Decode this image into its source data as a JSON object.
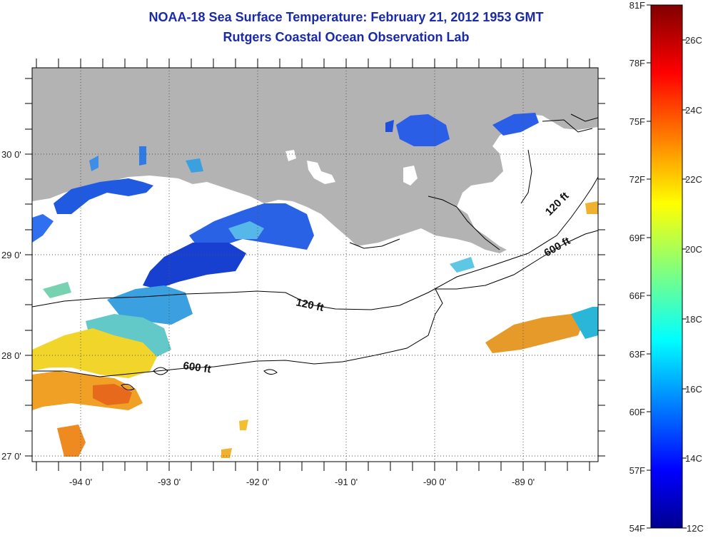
{
  "title_line1": "NOAA-18 Sea Surface Temperature:  February 21, 2012 1953 GMT",
  "title_line2": "Rutgers Coastal Ocean Observation Lab",
  "map": {
    "lon_labels": [
      "-94 0'",
      "-93 0'",
      "-92 0'",
      "-91 0'",
      "-90 0'",
      "-89 0'"
    ],
    "lat_labels": [
      "30 0'",
      "29 0'",
      "28 0'",
      "27 0'"
    ],
    "contour_labels": {
      "c120_a": "120 ft",
      "c120_b": "120 ft",
      "c600_a": "600 ft",
      "c600_b": "600 ft"
    },
    "colors": {
      "land": "#b3b3b3",
      "no_data": "#ffffff",
      "contour": "#000000"
    }
  },
  "colorbar": {
    "fahrenheit_labels": [
      "81F",
      "78F",
      "75F",
      "72F",
      "69F",
      "66F",
      "63F",
      "60F",
      "57F",
      "54F"
    ],
    "celsius_labels": [
      "26C",
      "24C",
      "22C",
      "20C",
      "18C",
      "16C",
      "14C",
      "12C"
    ],
    "colormap": "jet",
    "min_c": 12,
    "max_c": 27
  }
}
